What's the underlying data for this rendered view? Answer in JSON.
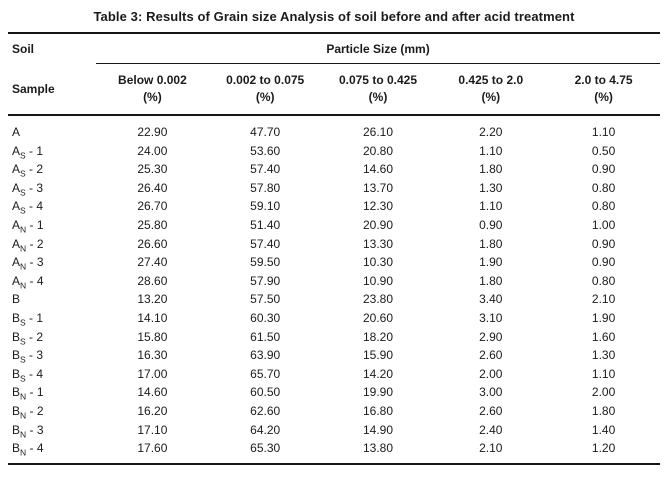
{
  "title": "Table 3: Results of Grain size Analysis of soil before and after acid treatment",
  "colors": {
    "text": "#1b1b1b",
    "rule": "#161616",
    "background": "#ffffff"
  },
  "table": {
    "header": {
      "soil_label": "Soil",
      "sample_label": "Sample",
      "particle_size": "Particle Size (mm)",
      "columns": [
        {
          "range": "Below 0.002",
          "unit": "(%)"
        },
        {
          "range": "0.002 to 0.075",
          "unit": "(%)"
        },
        {
          "range": "0.075 to 0.425",
          "unit": "(%)"
        },
        {
          "range": "0.425 to 2.0",
          "unit": "(%)"
        },
        {
          "range": "2.0 to 4.75",
          "unit": "(%)"
        }
      ]
    },
    "rows": [
      {
        "sample": {
          "base": "A",
          "sub": "",
          "suffix": ""
        },
        "values": [
          "22.90",
          "47.70",
          "26.10",
          "2.20",
          "1.10"
        ]
      },
      {
        "sample": {
          "base": "A",
          "sub": "S",
          "suffix": " - 1"
        },
        "values": [
          "24.00",
          "53.60",
          "20.80",
          "1.10",
          "0.50"
        ]
      },
      {
        "sample": {
          "base": "A",
          "sub": "S",
          "suffix": " - 2"
        },
        "values": [
          "25.30",
          "57.40",
          "14.60",
          "1.80",
          "0.90"
        ]
      },
      {
        "sample": {
          "base": "A",
          "sub": "S",
          "suffix": " - 3"
        },
        "values": [
          "26.40",
          "57.80",
          "13.70",
          "1.30",
          "0.80"
        ]
      },
      {
        "sample": {
          "base": "A",
          "sub": "S",
          "suffix": " - 4"
        },
        "values": [
          "26.70",
          "59.10",
          "12.30",
          "1.10",
          "0.80"
        ]
      },
      {
        "sample": {
          "base": "A",
          "sub": "N",
          "suffix": " - 1"
        },
        "values": [
          "25.80",
          "51.40",
          "20.90",
          "0.90",
          "1.00"
        ]
      },
      {
        "sample": {
          "base": "A",
          "sub": "N",
          "suffix": " - 2"
        },
        "values": [
          "26.60",
          "57.40",
          "13.30",
          "1.80",
          "0.90"
        ]
      },
      {
        "sample": {
          "base": "A",
          "sub": "N",
          "suffix": " - 3"
        },
        "values": [
          "27.40",
          "59.50",
          "10.30",
          "1.90",
          "0.90"
        ]
      },
      {
        "sample": {
          "base": "A",
          "sub": "N",
          "suffix": " - 4"
        },
        "values": [
          "28.60",
          "57.90",
          "10.90",
          "1.80",
          "0.80"
        ]
      },
      {
        "sample": {
          "base": "B",
          "sub": "",
          "suffix": ""
        },
        "values": [
          "13.20",
          "57.50",
          "23.80",
          "3.40",
          "2.10"
        ]
      },
      {
        "sample": {
          "base": "B",
          "sub": "S",
          "suffix": " - 1"
        },
        "values": [
          "14.10",
          "60.30",
          "20.60",
          "3.10",
          "1.90"
        ]
      },
      {
        "sample": {
          "base": "B",
          "sub": "S",
          "suffix": " - 2"
        },
        "values": [
          "15.80",
          "61.50",
          "18.20",
          "2.90",
          "1.60"
        ]
      },
      {
        "sample": {
          "base": "B",
          "sub": "S",
          "suffix": " - 3"
        },
        "values": [
          "16.30",
          "63.90",
          "15.90",
          "2.60",
          "1.30"
        ]
      },
      {
        "sample": {
          "base": "B",
          "sub": "S",
          "suffix": " - 4"
        },
        "values": [
          "17.00",
          "65.70",
          "14.20",
          "2.00",
          "1.10"
        ]
      },
      {
        "sample": {
          "base": "B",
          "sub": "N",
          "suffix": " - 1"
        },
        "values": [
          "14.60",
          "60.50",
          "19.90",
          "3.00",
          "2.00"
        ]
      },
      {
        "sample": {
          "base": "B",
          "sub": "N",
          "suffix": " - 2"
        },
        "values": [
          "16.20",
          "62.60",
          "16.80",
          "2.60",
          "1.80"
        ]
      },
      {
        "sample": {
          "base": "B",
          "sub": "N",
          "suffix": " - 3"
        },
        "values": [
          "17.10",
          "64.20",
          "14.90",
          "2.40",
          "1.40"
        ]
      },
      {
        "sample": {
          "base": "B",
          "sub": "N",
          "suffix": " - 4"
        },
        "values": [
          "17.60",
          "65.30",
          "13.80",
          "2.10",
          "1.20"
        ]
      }
    ]
  }
}
